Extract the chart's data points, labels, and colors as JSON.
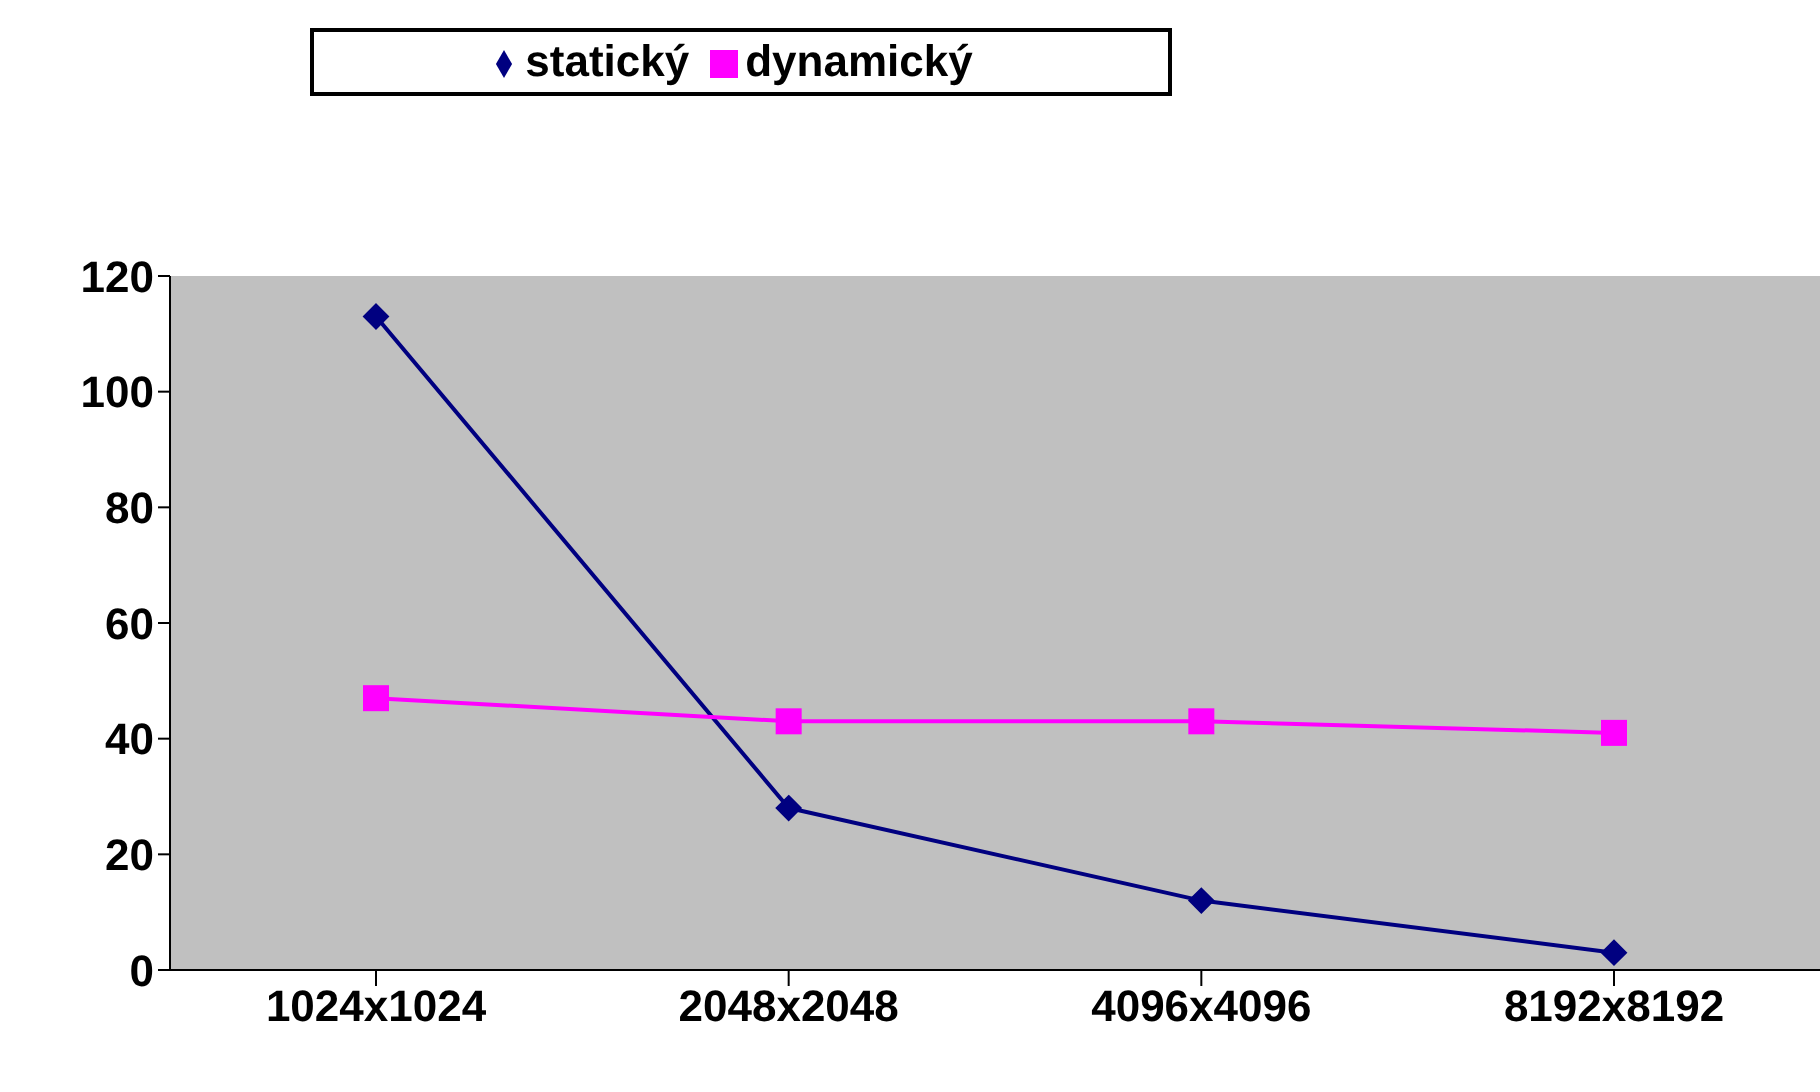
{
  "chart_data": {
    "type": "line",
    "categories": [
      "1024x1024",
      "2048x2048",
      "4096x4096",
      "8192x8192"
    ],
    "series": [
      {
        "name": "statický",
        "color": "#000080",
        "marker": "diamond",
        "values": [
          113,
          28,
          12,
          3
        ]
      },
      {
        "name": "dynamický",
        "color": "#ff00ff",
        "marker": "square",
        "values": [
          47,
          43,
          43,
          41
        ]
      }
    ],
    "ylim": [
      0,
      120
    ],
    "yticks": [
      0,
      20,
      40,
      60,
      80,
      100,
      120
    ],
    "grid": false,
    "legend": "top",
    "line_style": "solid"
  }
}
